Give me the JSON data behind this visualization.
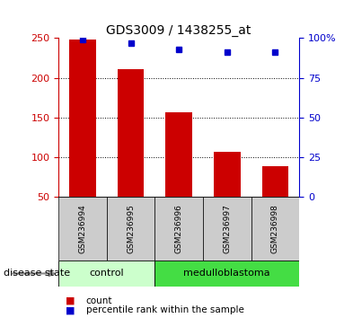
{
  "title": "GDS3009 / 1438255_at",
  "samples": [
    "GSM236994",
    "GSM236995",
    "GSM236996",
    "GSM236997",
    "GSM236998"
  ],
  "counts": [
    248,
    211,
    157,
    107,
    89
  ],
  "percentiles": [
    99,
    97,
    93,
    91,
    91
  ],
  "bar_color": "#cc0000",
  "dot_color": "#0000cc",
  "left_ylim": [
    50,
    250
  ],
  "left_yticks": [
    50,
    100,
    150,
    200,
    250
  ],
  "right_ylim": [
    0,
    100
  ],
  "right_yticks": [
    0,
    25,
    50,
    75,
    100
  ],
  "right_yticklabels": [
    "0",
    "25",
    "50",
    "75",
    "100%"
  ],
  "groups": [
    {
      "label": "control",
      "indices": [
        0,
        1
      ],
      "color": "#ccffcc"
    },
    {
      "label": "medulloblastoma",
      "indices": [
        2,
        3,
        4
      ],
      "color": "#44dd44"
    }
  ],
  "group_label": "disease state",
  "legend_count_label": "count",
  "legend_pct_label": "percentile rank within the sample",
  "bar_color_left_spine": "#cc0000",
  "dot_color_right_spine": "#0000cc",
  "sample_box_color": "#cccccc",
  "background_color": "#ffffff"
}
